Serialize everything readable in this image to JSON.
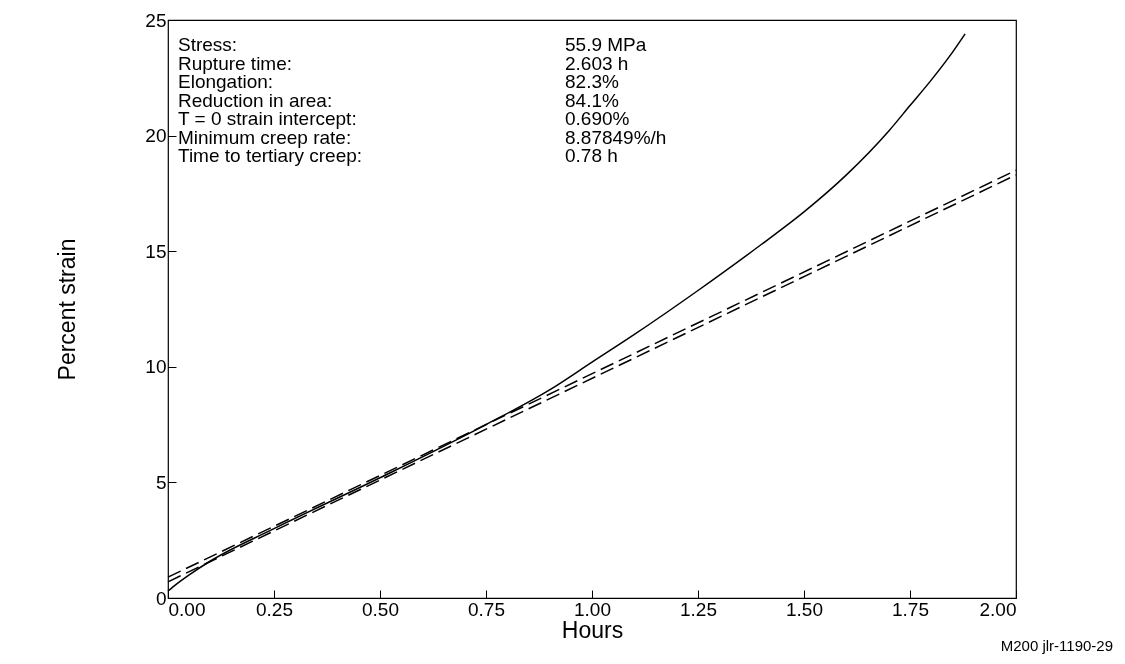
{
  "chart_data": {
    "type": "line",
    "xlabel": "Hours",
    "ylabel": "Percent strain",
    "xlim": [
      0,
      2
    ],
    "ylim": [
      0,
      25
    ],
    "xticks": [
      {
        "value": 0,
        "label": "0.00"
      },
      {
        "value": 0.25,
        "label": "0.25"
      },
      {
        "value": 0.5,
        "label": "0.50"
      },
      {
        "value": 0.75,
        "label": "0.75"
      },
      {
        "value": 1,
        "label": "1.00"
      },
      {
        "value": 1.25,
        "label": "1.25"
      },
      {
        "value": 1.5,
        "label": "1.50"
      },
      {
        "value": 1.75,
        "label": "1.75"
      },
      {
        "value": 2,
        "label": "2.00"
      }
    ],
    "yticks": [
      0,
      5,
      10,
      15,
      20,
      25
    ],
    "grid": false,
    "marker": "none",
    "series": [
      {
        "color": "#000000",
        "line_style": "solid",
        "x": [
          0,
          0.02,
          0.05,
          0.1,
          0.25,
          0.5,
          0.75,
          0.9,
          1,
          1.1,
          1.25,
          1.4,
          1.5,
          1.6,
          1.7,
          1.75,
          1.8,
          1.85,
          1.88
        ],
        "values": [
          0.3,
          0.6,
          1,
          1.6,
          3,
          5.2,
          7.5,
          9,
          10.2,
          11.4,
          13.3,
          15.3,
          16.7,
          18.3,
          20.2,
          21.3,
          22.4,
          23.6,
          24.4
        ]
      },
      {
        "color": "#000000",
        "line_style": "dashed",
        "x": [
          0,
          2
        ],
        "values": [
          0.9,
          18.5
        ]
      },
      {
        "color": "#000000",
        "line_style": "dashed",
        "x": [
          0,
          2
        ],
        "values": [
          0.7,
          18.3
        ]
      }
    ],
    "annotations": [
      "Stress:",
      "55.9 MPa",
      "Rupture time:",
      "2.603 h",
      "Elongation:",
      "82.3%",
      "Reduction in area:",
      "84.1%",
      "T = 0 strain intercept:",
      "0.690%",
      "Minimum creep rate:",
      "8.87849%/h",
      "Time to tertiary creep:",
      "0.78 h",
      "M200 jlr-1190-29"
    ]
  }
}
